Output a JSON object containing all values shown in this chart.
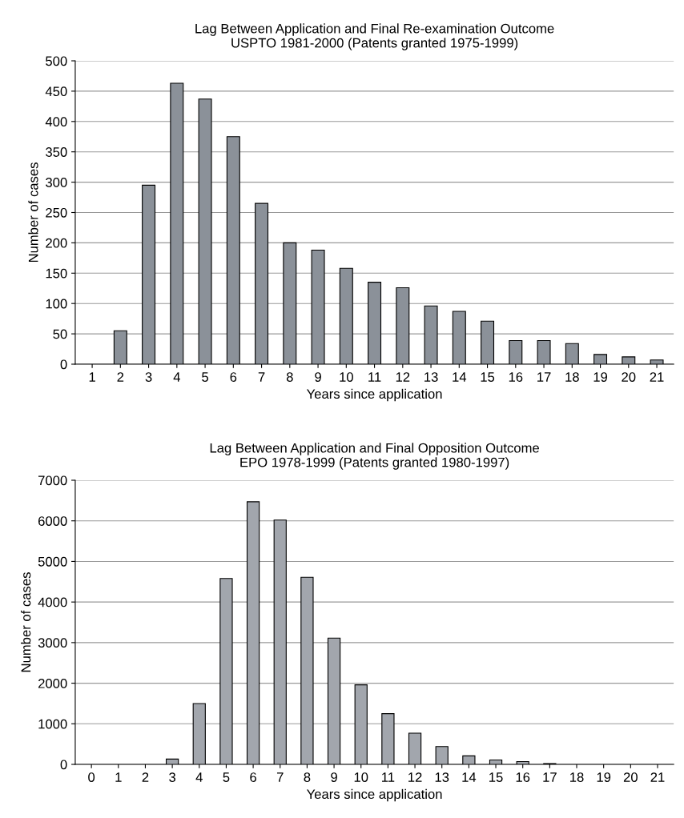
{
  "chart_data": [
    {
      "type": "bar",
      "title": "Lag Between Application and Final Re-examination Outcome\nUSPTO 1981-2000 (Patents granted 1975-1999)",
      "xlabel": "Years since application",
      "ylabel": "Number of cases",
      "categories": [
        "1",
        "2",
        "3",
        "4",
        "5",
        "6",
        "7",
        "8",
        "9",
        "10",
        "11",
        "12",
        "13",
        "14",
        "15",
        "16",
        "17",
        "18",
        "19",
        "20",
        "21"
      ],
      "values": [
        0,
        55,
        295,
        463,
        437,
        375,
        265,
        200,
        188,
        158,
        135,
        126,
        96,
        87,
        71,
        39,
        39,
        34,
        16,
        12,
        7
      ],
      "color": "#8b9199",
      "ylim": [
        0,
        500
      ],
      "yticks": [
        0,
        50,
        100,
        150,
        200,
        250,
        300,
        350,
        400,
        450,
        500
      ],
      "grid": "y"
    },
    {
      "type": "bar",
      "title": "Lag Between Application and Final Opposition Outcome\nEPO 1978-1999 (Patents granted 1980-1997)",
      "xlabel": "Years since application",
      "ylabel": "Number of cases",
      "categories": [
        "0",
        "1",
        "2",
        "3",
        "4",
        "5",
        "6",
        "7",
        "8",
        "9",
        "10",
        "11",
        "12",
        "13",
        "14",
        "15",
        "16",
        "17",
        "18",
        "19",
        "20",
        "21"
      ],
      "values": [
        0,
        0,
        0,
        130,
        1500,
        4580,
        6470,
        6020,
        4610,
        3110,
        1960,
        1250,
        770,
        440,
        210,
        110,
        70,
        20,
        0,
        0,
        0,
        0
      ],
      "color": "#a2a6ad",
      "ylim": [
        0,
        7000
      ],
      "yticks": [
        0,
        1000,
        2000,
        3000,
        4000,
        5000,
        6000,
        7000
      ],
      "grid": "y"
    }
  ]
}
